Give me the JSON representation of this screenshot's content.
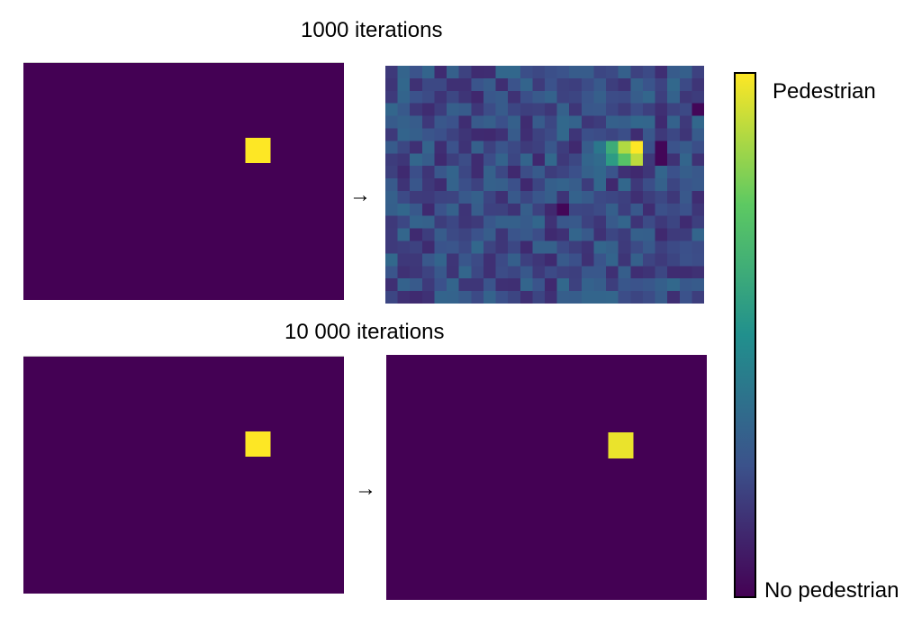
{
  "rows": [
    {
      "title": "1000 iterations"
    },
    {
      "title": "10 000 iterations"
    }
  ],
  "arrow_glyph": "→",
  "colorbar": {
    "label_high": "Pedestrian",
    "label_low": "No pedestrian",
    "colormap": "viridis",
    "stops": [
      "#440154",
      "#3b528b",
      "#21908d",
      "#5dc962",
      "#fde725"
    ]
  },
  "colors": {
    "background_low": "#440154",
    "pedestrian": "#fde725"
  },
  "grid": {
    "cols": 26,
    "rows": 19,
    "pedestrian_cells": [
      [
        18,
        6
      ],
      [
        19,
        6
      ],
      [
        18,
        7
      ],
      [
        19,
        7
      ]
    ]
  },
  "top_output": {
    "noise_seed": 7,
    "hotspot": [
      {
        "col": 18,
        "row": 6,
        "value": 0.62
      },
      {
        "col": 18,
        "row": 7,
        "value": 0.55
      },
      {
        "col": 19,
        "row": 6,
        "value": 0.88
      },
      {
        "col": 19,
        "row": 7,
        "value": 0.72
      },
      {
        "col": 20,
        "row": 6,
        "value": 1.0
      },
      {
        "col": 20,
        "row": 7,
        "value": 0.9
      },
      {
        "col": 17,
        "row": 6,
        "value": 0.4
      },
      {
        "col": 17,
        "row": 7,
        "value": 0.35
      }
    ],
    "dark_cells": [
      [
        22,
        6
      ],
      [
        22,
        7
      ],
      [
        25,
        3
      ],
      [
        14,
        11
      ]
    ]
  },
  "bottom_output": {
    "pedestrian_cells": [
      [
        18,
        6
      ],
      [
        19,
        6
      ],
      [
        18,
        7
      ],
      [
        19,
        7
      ]
    ],
    "pedestrian_value": 0.97
  }
}
